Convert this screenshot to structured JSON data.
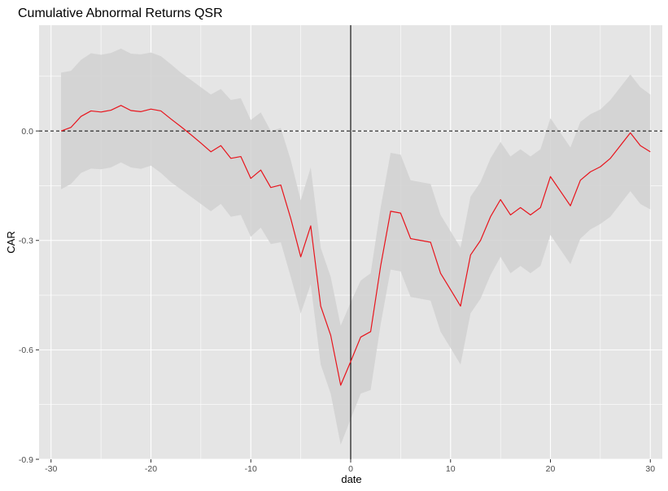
{
  "chart_data": {
    "type": "line",
    "title": "Cumulative Abnormal Returns QSR",
    "xlabel": "date",
    "ylabel": "CAR",
    "xlim": [
      -31.2,
      31.2
    ],
    "ylim": [
      -0.9,
      0.29
    ],
    "x_ticks": [
      -30,
      -20,
      -10,
      0,
      10,
      20,
      30
    ],
    "x_tick_labels": [
      "-30",
      "-20",
      "-10",
      "0",
      "10",
      "20",
      "30"
    ],
    "y_ticks": [
      -0.9,
      -0.6,
      -0.3,
      0.0
    ],
    "y_tick_labels": [
      "-0.9",
      "-0.6",
      "-0.3",
      "0.0"
    ],
    "grid": true,
    "background_color": "#e5e5e5",
    "grid_color": "#ffffff",
    "ribbon_color": "#d1d1d1",
    "line_color": "#e8141c",
    "reference_lines": [
      {
        "orientation": "horizontal",
        "value": 0,
        "style": "dashed",
        "color": "#000000"
      },
      {
        "orientation": "vertical",
        "value": 0,
        "style": "solid",
        "color": "#000000"
      }
    ],
    "x": [
      -29,
      -28,
      -27,
      -26,
      -25,
      -24,
      -23,
      -22,
      -21,
      -20,
      -19,
      -18,
      -17,
      -16,
      -15,
      -14,
      -13,
      -12,
      -11,
      -10,
      -9,
      -8,
      -7,
      -6,
      -5,
      -4,
      -3,
      -2,
      -1,
      0,
      1,
      2,
      3,
      4,
      5,
      6,
      7,
      8,
      9,
      10,
      11,
      12,
      13,
      14,
      15,
      16,
      17,
      18,
      19,
      20,
      21,
      22,
      23,
      24,
      25,
      26,
      27,
      28,
      29,
      30
    ],
    "series": [
      {
        "values": [
          0.0,
          0.01,
          0.04,
          0.055,
          0.052,
          0.057,
          0.07,
          0.056,
          0.053,
          0.06,
          0.055,
          0.033,
          0.012,
          -0.01,
          -0.033,
          -0.057,
          -0.04,
          -0.075,
          -0.07,
          -0.13,
          -0.107,
          -0.155,
          -0.148,
          -0.24,
          -0.345,
          -0.26,
          -0.48,
          -0.56,
          -0.697,
          -0.632,
          -0.565,
          -0.55,
          -0.37,
          -0.22,
          -0.225,
          -0.295,
          -0.3,
          -0.305,
          -0.39,
          -0.435,
          -0.48,
          -0.34,
          -0.3,
          -0.235,
          -0.188,
          -0.23,
          -0.21,
          -0.23,
          -0.21,
          -0.125,
          -0.165,
          -0.205,
          -0.135,
          -0.112,
          -0.098,
          -0.075,
          -0.04,
          -0.005,
          -0.04,
          -0.057
        ],
        "lower": [
          -0.16,
          -0.145,
          -0.115,
          -0.103,
          -0.105,
          -0.1,
          -0.086,
          -0.1,
          -0.104,
          -0.095,
          -0.115,
          -0.14,
          -0.16,
          -0.18,
          -0.2,
          -0.22,
          -0.2,
          -0.235,
          -0.23,
          -0.29,
          -0.265,
          -0.31,
          -0.305,
          -0.4,
          -0.5,
          -0.42,
          -0.64,
          -0.72,
          -0.86,
          -0.79,
          -0.72,
          -0.71,
          -0.53,
          -0.38,
          -0.385,
          -0.455,
          -0.46,
          -0.465,
          -0.55,
          -0.595,
          -0.64,
          -0.5,
          -0.46,
          -0.395,
          -0.345,
          -0.39,
          -0.37,
          -0.39,
          -0.37,
          -0.285,
          -0.325,
          -0.365,
          -0.295,
          -0.27,
          -0.255,
          -0.235,
          -0.2,
          -0.165,
          -0.2,
          -0.215
        ],
        "upper": [
          0.16,
          0.165,
          0.195,
          0.213,
          0.209,
          0.214,
          0.226,
          0.212,
          0.21,
          0.215,
          0.205,
          0.183,
          0.16,
          0.14,
          0.12,
          0.1,
          0.115,
          0.085,
          0.09,
          0.03,
          0.051,
          0.0,
          0.008,
          -0.08,
          -0.19,
          -0.1,
          -0.32,
          -0.4,
          -0.534,
          -0.47,
          -0.41,
          -0.39,
          -0.21,
          -0.06,
          -0.065,
          -0.135,
          -0.14,
          -0.145,
          -0.23,
          -0.275,
          -0.32,
          -0.18,
          -0.14,
          -0.075,
          -0.03,
          -0.07,
          -0.05,
          -0.07,
          -0.05,
          0.035,
          -0.005,
          -0.045,
          0.025,
          0.046,
          0.059,
          0.085,
          0.12,
          0.155,
          0.12,
          0.1
        ]
      }
    ]
  }
}
